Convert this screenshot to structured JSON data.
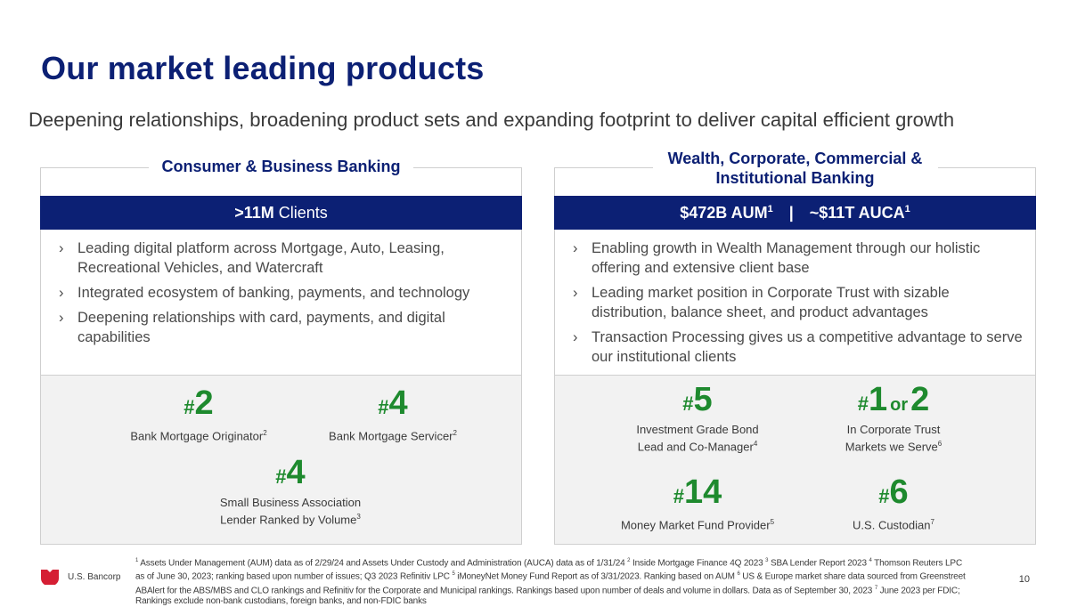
{
  "title": "Our market leading products",
  "subtitle": "Deepening relationships, broadening product sets and expanding footprint to deliver capital efficient growth",
  "left_panel": {
    "heading": "Consumer & Business Banking",
    "banner_strong": ">11M",
    "banner_light": "Clients",
    "bullets": [
      "Leading digital platform across Mortgage, Auto, Leasing, Recreational Vehicles, and Watercraft",
      "Integrated ecosystem of banking, payments, and technology",
      "Deepening relationships with card, payments, and digital capabilities"
    ],
    "stats": [
      {
        "hash": "#",
        "rank": "2",
        "label": "Bank Mortgage Originator",
        "sup": "2"
      },
      {
        "hash": "#",
        "rank": "4",
        "label": "Bank Mortgage Servicer",
        "sup": "2"
      },
      {
        "hash": "#",
        "rank": "4",
        "label_line1": "Small Business Association",
        "label_line2": "Lender Ranked by Volume",
        "sup": "3"
      }
    ]
  },
  "right_panel": {
    "heading": "Wealth, Corporate, Commercial & Institutional Banking",
    "banner_aum": "$472B AUM",
    "banner_aum_sup": "1",
    "banner_sep": "|",
    "banner_auca": "~$11T AUCA",
    "banner_auca_sup": "1",
    "bullets": [
      "Enabling growth in Wealth Management through our holistic offering and extensive client base",
      "Leading market position in Corporate Trust with sizable distribution, balance sheet, and product advantages",
      "Transaction Processing gives us a competitive advantage to serve our institutional clients"
    ],
    "stats": [
      {
        "hash": "#",
        "rank": "5",
        "label_line1": "Investment Grade Bond",
        "label_line2": "Lead and Co-Manager",
        "sup": "4"
      },
      {
        "hash": "#",
        "rank": "1",
        "or": "or",
        "rank2": "2",
        "label_line1": "In Corporate Trust",
        "label_line2": "Markets we Serve",
        "sup": "6"
      },
      {
        "hash": "#",
        "rank": "14",
        "label": "Money Market Fund Provider",
        "sup": "5"
      },
      {
        "hash": "#",
        "rank": "6",
        "label": "U.S. Custodian",
        "sup": "7"
      }
    ]
  },
  "footnote": {
    "s1": "1",
    "t1": " Assets Under Management (AUM) data as of 2/29/24 and Assets Under Custody and Administration (AUCA) data as of 1/31/24 ",
    "s2": "2",
    "t2": " Inside Mortgage Finance 4Q 2023 ",
    "s3": "3",
    "t3": " SBA Lender Report 2023 ",
    "s4": "4",
    "t4": " Thomson Reuters LPC as of June 30, 2023; ranking based upon number of issues; Q3 2023 Refinitiv LPC ",
    "s5": "5",
    "t5": " iMoneyNet Money Fund Report as of 3/31/2023. Ranking based on AUM ",
    "s6": "6",
    "t6": " US & Europe market share data sourced from Greenstreet ABAlert for the ABS/MBS and CLO rankings and Refinitiv for the Corporate and Municipal rankings. Rankings based upon number of deals and volume in dollars. Data as of September 30, 2023 ",
    "s7": "7",
    "t7": " June 2023 per FDIC; Rankings exclude non-bank custodians, foreign banks, and non-FDIC banks"
  },
  "logo_text": "U.S. Bancorp",
  "page_number": "10",
  "colors": {
    "navy": "#0c2074",
    "green": "#1e8a2e",
    "logo_red": "#d51f34",
    "panel_gray": "#f2f2f2"
  }
}
